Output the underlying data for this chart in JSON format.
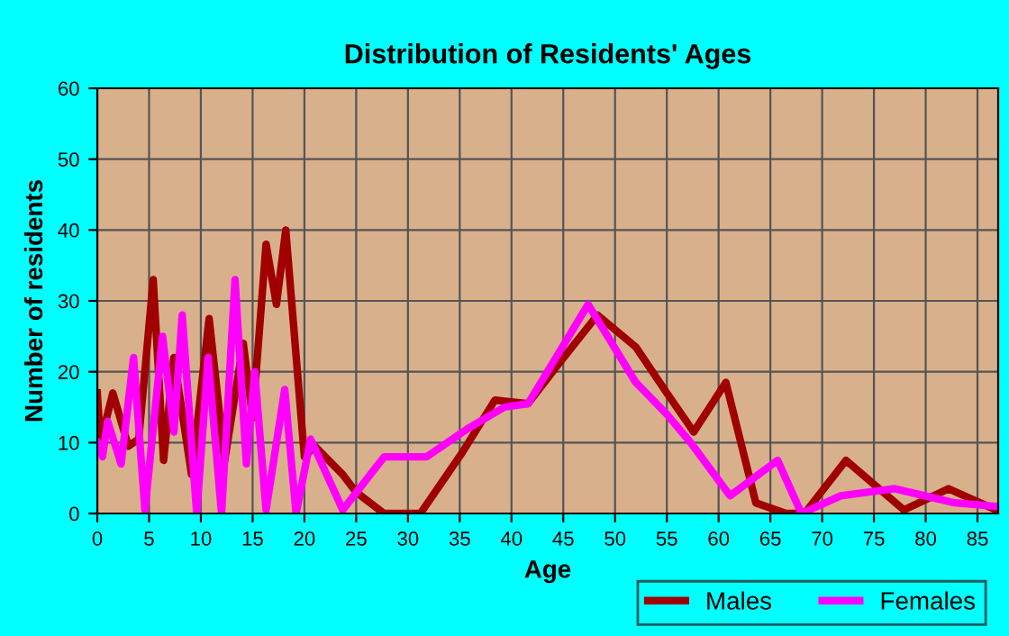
{
  "chart_data": {
    "type": "line",
    "title": "Distribution of Residents' Ages",
    "xlabel": "Age",
    "ylabel": "Number of residents",
    "xlim": [
      0,
      87
    ],
    "xticks": [
      0,
      5,
      10,
      15,
      20,
      25,
      30,
      35,
      40,
      45,
      50,
      55,
      60,
      65,
      70,
      75,
      80,
      85
    ],
    "ylim": [
      0,
      60
    ],
    "yticks": [
      0,
      10,
      20,
      30,
      40,
      50,
      60
    ],
    "grid": true,
    "legend": "bottom right",
    "marker": "none",
    "line_style": "solid",
    "series": [
      {
        "name": "Males",
        "color": "#a00000",
        "x": [
          0,
          0.3,
          1.5,
          3,
          4,
          5.4,
          6.4,
          7.4,
          9.1,
          10.8,
          12.3,
          14.1,
          15,
          16.3,
          17.3,
          18.2,
          20,
          21,
          23.7,
          25,
          27.7,
          31.2,
          35.2,
          38.4,
          41.6,
          44.5,
          48.3,
          52,
          55,
          57.6,
          60.7,
          63.6,
          66.5,
          68.3,
          72.3,
          77.9,
          82.2,
          86.8
        ],
        "values": [
          17,
          10,
          17,
          9.5,
          10.5,
          33,
          7.5,
          22,
          5.5,
          27.5,
          7.5,
          24,
          13.5,
          38,
          29.5,
          40,
          8,
          9.5,
          5.5,
          3,
          0,
          0,
          8.5,
          16,
          15.5,
          21,
          28,
          23.5,
          17,
          11.5,
          18.5,
          1.5,
          0,
          0,
          7.5,
          0.5,
          3.5,
          0.5
        ]
      },
      {
        "name": "Females",
        "color": "#ff00ff",
        "x": [
          0,
          0.5,
          1,
          2.3,
          3.5,
          4.6,
          6.3,
          7.4,
          8.2,
          9.6,
          10.7,
          12,
          13.3,
          14.4,
          15.2,
          16.3,
          18.1,
          19.2,
          20.6,
          23.7,
          27.7,
          31.8,
          35.8,
          39.3,
          41.6,
          47.4,
          52,
          55,
          57.3,
          61.1,
          65.7,
          68,
          71.8,
          77,
          82.8,
          86.8
        ],
        "values": [
          10,
          8,
          13,
          7,
          22,
          0.5,
          25,
          11.5,
          28,
          0,
          22,
          0,
          33,
          7,
          20,
          0.5,
          17.5,
          0,
          10.5,
          0.5,
          8,
          8,
          12,
          15,
          15.5,
          29.5,
          18.5,
          14,
          10,
          2.5,
          7.5,
          0,
          2.5,
          3.5,
          1.5,
          1
        ]
      }
    ]
  }
}
